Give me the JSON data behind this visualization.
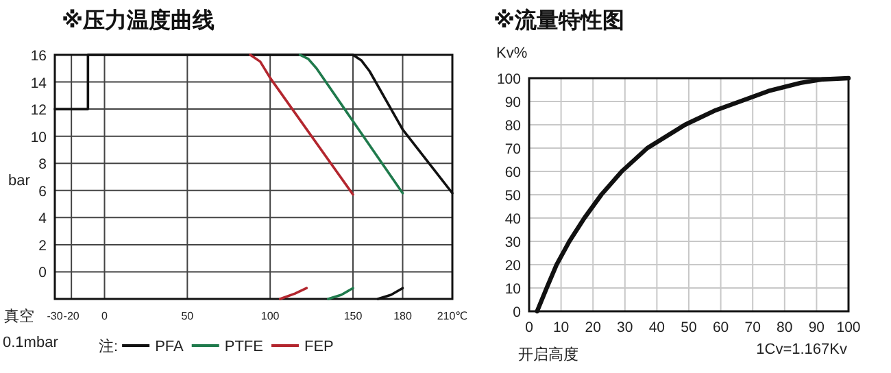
{
  "chart_data": [
    {
      "type": "line",
      "title": "※压力温度曲线",
      "ylabel": "bar",
      "legend_title": "注:",
      "annotations": [
        "真空",
        "0.1mbar"
      ],
      "xlim": [
        -30,
        210
      ],
      "ylim": [
        -2,
        16
      ],
      "xticks": [
        -30,
        -20,
        0,
        50,
        100,
        150,
        180,
        {
          "value": 210,
          "label": "210℃"
        }
      ],
      "yticks": [
        0,
        2,
        4,
        6,
        8,
        10,
        12,
        14,
        16
      ],
      "grid": true,
      "legend": "bottom",
      "line_style": "solid",
      "series": [
        {
          "name": "PFA",
          "color": "#111111",
          "x": [
            -30,
            -10,
            -10,
            150,
            155,
            160,
            180,
            210
          ],
          "values": [
            12,
            12,
            16,
            16,
            15.6,
            14.8,
            10.5,
            5.8
          ]
        },
        {
          "name": "PTFE",
          "color": "#1f7a4c",
          "x": [
            118,
            123,
            128,
            180
          ],
          "values": [
            16,
            15.7,
            15,
            5.8
          ]
        },
        {
          "name": "FEP",
          "color": "#b3262e",
          "x": [
            88,
            94,
            100,
            150
          ],
          "values": [
            16,
            15.5,
            14.3,
            5.7
          ]
        },
        {
          "color": "#b3262e",
          "x": [
            106,
            115,
            122
          ],
          "values": [
            -2,
            -1.6,
            -1.2
          ]
        },
        {
          "color": "#1f7a4c",
          "x": [
            135,
            143,
            150
          ],
          "values": [
            -2,
            -1.7,
            -1.2
          ]
        },
        {
          "color": "#111111",
          "x": [
            165,
            173,
            180
          ],
          "values": [
            -2,
            -1.7,
            -1.2
          ]
        }
      ]
    },
    {
      "type": "line",
      "title": "※流量特性图",
      "ylabel": "Kv%",
      "xlabel": "开启高度",
      "annotations": [
        "1Cv=1.167Kv"
      ],
      "xlim": [
        0,
        100
      ],
      "ylim": [
        0,
        100
      ],
      "xticks": [
        0,
        10,
        20,
        30,
        40,
        50,
        60,
        70,
        80,
        90,
        100
      ],
      "yticks": [
        0,
        10,
        20,
        30,
        40,
        50,
        60,
        70,
        80,
        90,
        100
      ],
      "grid": true,
      "line_style": "solid",
      "series": [
        {
          "color": "#111111",
          "x": [
            2.5,
            5.5,
            8.6,
            12.6,
            17.3,
            22.6,
            29,
            37,
            48.8,
            58,
            66,
            75,
            85,
            92,
            100
          ],
          "values": [
            0,
            10,
            20,
            30,
            40,
            50,
            60,
            70,
            80,
            86,
            90,
            94.5,
            98,
            99.5,
            100
          ]
        }
      ]
    }
  ]
}
